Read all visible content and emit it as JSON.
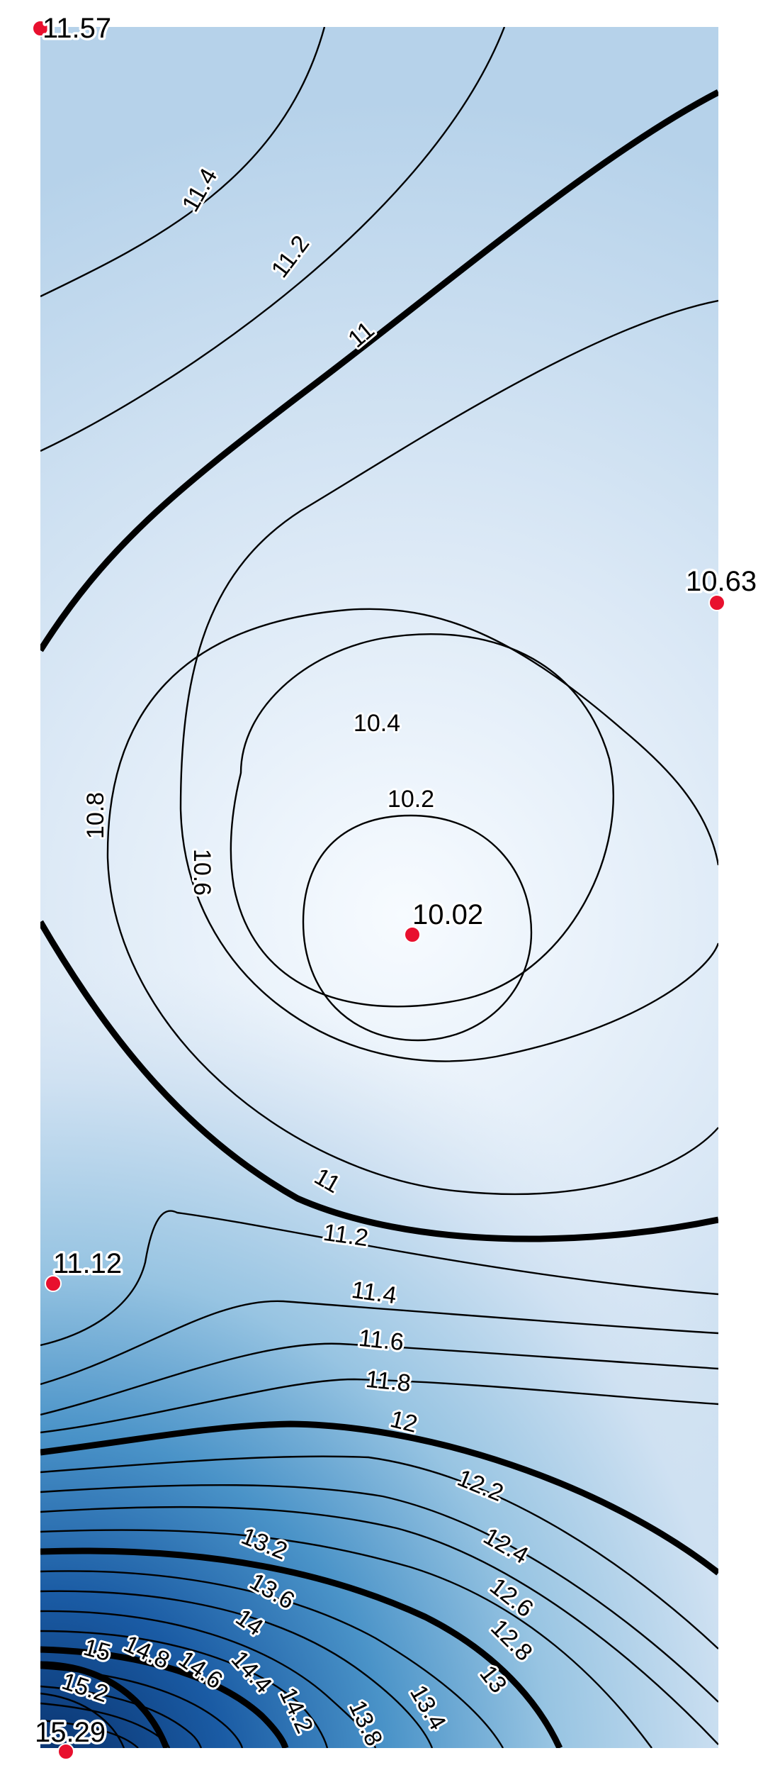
{
  "chart_data": {
    "type": "contour",
    "colormap": "Blues",
    "contour_interval": 0.2,
    "major_contour_interval": 1.0,
    "value_range": [
      10.02,
      15.29
    ],
    "contour_levels": [
      {
        "value": 11.4,
        "label": "11.4"
      },
      {
        "value": 11.2,
        "label": "11.2"
      },
      {
        "value": 11.0,
        "label": "11"
      },
      {
        "value": 10.8,
        "label": "10.8"
      },
      {
        "value": 10.6,
        "label": "10.6"
      },
      {
        "value": 10.4,
        "label": "10.4"
      },
      {
        "value": 10.2,
        "label": "10.2"
      },
      {
        "value": 11.0,
        "label": "11"
      },
      {
        "value": 11.2,
        "label": "11.2"
      },
      {
        "value": 11.4,
        "label": "11.4"
      },
      {
        "value": 11.6,
        "label": "11.6"
      },
      {
        "value": 11.8,
        "label": "11.8"
      },
      {
        "value": 12.0,
        "label": "12"
      },
      {
        "value": 12.2,
        "label": "12.2"
      },
      {
        "value": 12.4,
        "label": "12.4"
      },
      {
        "value": 12.6,
        "label": "12.6"
      },
      {
        "value": 12.8,
        "label": "12.8"
      },
      {
        "value": 13.0,
        "label": "13"
      },
      {
        "value": 13.2,
        "label": "13.2"
      },
      {
        "value": 13.4,
        "label": "13.4"
      },
      {
        "value": 13.6,
        "label": "13.6"
      },
      {
        "value": 13.8,
        "label": "13.8"
      },
      {
        "value": 14.0,
        "label": "14"
      },
      {
        "value": 14.2,
        "label": "14.2"
      },
      {
        "value": 14.4,
        "label": "14.4"
      },
      {
        "value": 14.6,
        "label": "14.6"
      },
      {
        "value": 14.8,
        "label": "14.8"
      },
      {
        "value": 15.0,
        "label": "15"
      },
      {
        "value": 15.2,
        "label": "15.2"
      }
    ],
    "data_points": [
      {
        "value": 11.57,
        "label": "11.57"
      },
      {
        "value": 10.63,
        "label": "10.63"
      },
      {
        "value": 10.02,
        "label": "10.02"
      },
      {
        "value": 11.12,
        "label": "11.12"
      },
      {
        "value": 15.29,
        "label": "15.29"
      }
    ],
    "colors": {
      "low": "#f7fbff",
      "high": "#08306b",
      "point": "#e8102e"
    }
  }
}
